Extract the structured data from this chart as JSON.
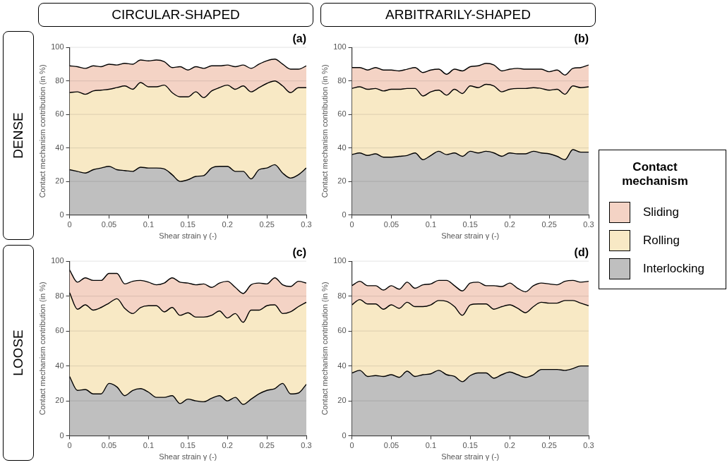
{
  "chart_data": [
    {
      "type": "area",
      "stacked": true,
      "title": "(a)",
      "xlabel": "Shear strain γ (-)",
      "ylabel": "Contact mechanism contribution (in %)",
      "annotations": [
        "CIRCULAR-SHAPED",
        "DENSE"
      ],
      "x": [
        0,
        0.01,
        0.02,
        0.03,
        0.04,
        0.05,
        0.06,
        0.07,
        0.08,
        0.09,
        0.1,
        0.11,
        0.12,
        0.13,
        0.14,
        0.15,
        0.16,
        0.17,
        0.18,
        0.19,
        0.2,
        0.21,
        0.22,
        0.23,
        0.24,
        0.25,
        0.26,
        0.27,
        0.28,
        0.29,
        0.3
      ],
      "xlim": [
        0,
        0.3
      ],
      "xticks": [
        0,
        0.05,
        0.1,
        0.15,
        0.2,
        0.25,
        0.3
      ],
      "ylim": [
        0,
        100
      ],
      "yticks": [
        0,
        20,
        40,
        60,
        80,
        100
      ],
      "grid": "y",
      "legend": false,
      "series": [
        {
          "color": "#bfbfbf",
          "values": [
            27,
            26,
            25,
            27,
            28,
            29,
            27,
            26.5,
            26,
            28.5,
            28,
            28,
            27.5,
            24,
            20,
            21,
            23,
            23.5,
            28,
            29,
            29,
            26,
            26,
            21.5,
            27,
            28,
            30,
            25,
            22,
            24,
            28
          ]
        },
        {
          "color": "#f8e9c5",
          "values": [
            46,
            47.5,
            47,
            47,
            46.5,
            46,
            49,
            50.5,
            49,
            50.5,
            48.5,
            48.5,
            50,
            49,
            50.5,
            49.5,
            50.5,
            46.5,
            46,
            47,
            48.5,
            49,
            51,
            52,
            49,
            50.5,
            50,
            52,
            51,
            52,
            48
          ]
        },
        {
          "color": "#f4d3c5",
          "values": [
            16,
            15,
            15.5,
            15,
            14,
            15,
            13.5,
            13.5,
            15,
            13.5,
            15.5,
            16,
            14,
            15,
            18,
            16,
            15,
            17.5,
            15,
            13,
            12,
            13.5,
            12.5,
            14,
            14,
            13.5,
            13,
            13,
            14,
            11,
            13
          ]
        }
      ]
    },
    {
      "type": "area",
      "stacked": true,
      "title": "(b)",
      "xlabel": "Shear strain γ (-)",
      "ylabel": "Contact mechanism contribution (in %)",
      "annotations": [
        "ARBITRARILY-SHAPED"
      ],
      "legend_title": "Contact mechanism",
      "x": [
        0,
        0.01,
        0.02,
        0.03,
        0.04,
        0.05,
        0.06,
        0.07,
        0.08,
        0.09,
        0.1,
        0.11,
        0.12,
        0.13,
        0.14,
        0.15,
        0.16,
        0.17,
        0.18,
        0.19,
        0.2,
        0.21,
        0.22,
        0.23,
        0.24,
        0.25,
        0.26,
        0.27,
        0.28,
        0.29,
        0.3
      ],
      "xlim": [
        0,
        0.3
      ],
      "xticks": [
        0,
        0.05,
        0.1,
        0.15,
        0.2,
        0.25,
        0.3
      ],
      "ylim": [
        0,
        100
      ],
      "yticks": [
        0,
        20,
        40,
        60,
        80,
        100
      ],
      "grid": "y",
      "legend": "right",
      "series": [
        {
          "name": "Interlocking",
          "color": "#bfbfbf",
          "values": [
            36,
            37,
            35.5,
            36.5,
            34.5,
            34.5,
            35,
            35.5,
            37,
            33,
            35.5,
            38,
            36,
            37,
            35,
            38,
            37,
            38,
            37,
            35,
            37,
            36.5,
            36.5,
            38,
            37,
            36.5,
            35,
            33,
            39,
            37.5,
            37.5
          ]
        },
        {
          "name": "Rolling",
          "color": "#f8e9c5",
          "values": [
            39.5,
            39.5,
            39.5,
            39,
            39.5,
            40.5,
            40,
            40,
            38.5,
            38,
            38,
            36.5,
            35.5,
            38,
            37.5,
            39,
            39,
            40,
            40,
            38.5,
            38,
            39,
            39,
            38,
            38.5,
            38,
            40,
            39,
            38,
            38.5,
            39
          ]
        },
        {
          "name": "Sliding",
          "color": "#f4d3c5",
          "values": [
            12.5,
            11.5,
            11.5,
            12.5,
            12.5,
            11.5,
            11,
            11.5,
            12.5,
            14,
            13,
            12.5,
            12.5,
            12,
            13.5,
            11.5,
            13,
            12.5,
            12.5,
            12.5,
            12,
            12,
            11.5,
            11,
            11.5,
            11,
            11.5,
            11.5,
            10.5,
            12,
            13
          ]
        }
      ]
    },
    {
      "type": "area",
      "stacked": true,
      "title": "(c)",
      "xlabel": "Shear strain γ (-)",
      "ylabel": "Contact mechanism contribution (in %)",
      "annotations": [
        "LOOSE"
      ],
      "x": [
        0,
        0.01,
        0.02,
        0.03,
        0.04,
        0.05,
        0.06,
        0.07,
        0.08,
        0.09,
        0.1,
        0.11,
        0.12,
        0.13,
        0.14,
        0.15,
        0.16,
        0.17,
        0.18,
        0.19,
        0.2,
        0.21,
        0.22,
        0.23,
        0.24,
        0.25,
        0.26,
        0.27,
        0.28,
        0.29,
        0.3
      ],
      "xlim": [
        0,
        0.3
      ],
      "xticks": [
        0,
        0.05,
        0.1,
        0.15,
        0.2,
        0.25,
        0.3
      ],
      "ylim": [
        0,
        100
      ],
      "yticks": [
        0,
        20,
        40,
        60,
        80,
        100
      ],
      "grid": "y",
      "legend": false,
      "series": [
        {
          "color": "#bfbfbf",
          "values": [
            34,
            26,
            26.5,
            24,
            24,
            30,
            28,
            23,
            26,
            27,
            25,
            22,
            22,
            23,
            18.5,
            21,
            20,
            19.5,
            21.5,
            23,
            20,
            22,
            18,
            21,
            24,
            26,
            27,
            30,
            24,
            24.5,
            29.5
          ]
        },
        {
          "color": "#f8e9c5",
          "values": [
            48,
            46.5,
            48.5,
            48,
            49.5,
            46,
            50.5,
            50,
            44,
            46.5,
            49.5,
            52.5,
            49,
            50.5,
            50.5,
            49.5,
            48,
            48.5,
            47.5,
            48.5,
            47.5,
            48,
            47,
            51,
            48,
            48.5,
            48,
            40,
            47,
            49.5,
            47
          ]
        },
        {
          "color": "#f4d3c5",
          "values": [
            13,
            15.5,
            15.5,
            17,
            15.5,
            17,
            14.5,
            14,
            18.5,
            15.5,
            13.5,
            12,
            16.5,
            17,
            19,
            17,
            18.5,
            19,
            16,
            16,
            21,
            15,
            16.5,
            14.5,
            15.5,
            12.5,
            15.5,
            16.5,
            14.5,
            14.5,
            11
          ]
        }
      ]
    },
    {
      "type": "area",
      "stacked": true,
      "title": "(d)",
      "xlabel": "Shear strain γ (-)",
      "ylabel": "Contact mechanism contribution (in %)",
      "x": [
        0,
        0.01,
        0.02,
        0.03,
        0.04,
        0.05,
        0.06,
        0.07,
        0.08,
        0.09,
        0.1,
        0.11,
        0.12,
        0.13,
        0.14,
        0.15,
        0.16,
        0.17,
        0.18,
        0.19,
        0.2,
        0.21,
        0.22,
        0.23,
        0.24,
        0.25,
        0.26,
        0.27,
        0.28,
        0.29,
        0.3
      ],
      "xlim": [
        0,
        0.3
      ],
      "xticks": [
        0,
        0.05,
        0.1,
        0.15,
        0.2,
        0.25,
        0.3
      ],
      "ylim": [
        0,
        100
      ],
      "yticks": [
        0,
        20,
        40,
        60,
        80,
        100
      ],
      "grid": "y",
      "legend": false,
      "series": [
        {
          "color": "#bfbfbf",
          "values": [
            36,
            37.5,
            34,
            34.5,
            34,
            35,
            33.5,
            37,
            34,
            35,
            35.5,
            37.5,
            35,
            34,
            31,
            34.5,
            36,
            36,
            33,
            35,
            36.5,
            35,
            33.5,
            35,
            38,
            38,
            38,
            37.5,
            38.5,
            40,
            40
          ]
        },
        {
          "color": "#f8e9c5",
          "values": [
            39,
            40.5,
            41.5,
            41,
            38.5,
            40,
            39.5,
            39.5,
            40,
            39,
            39.5,
            40,
            42,
            40,
            38,
            40.5,
            39.5,
            39.5,
            39.5,
            39,
            38.5,
            38,
            37,
            39,
            38.5,
            38,
            38,
            40,
            39,
            36,
            34.5
          ]
        },
        {
          "color": "#f4d3c5",
          "values": [
            11,
            10.5,
            10.5,
            10.5,
            11,
            11,
            11,
            11.5,
            10.5,
            12.5,
            12,
            11.5,
            12,
            12,
            14,
            12.5,
            12.5,
            10.5,
            13.5,
            11.5,
            12.5,
            11.5,
            12,
            12,
            11,
            11,
            10.5,
            11,
            11.5,
            12,
            14
          ]
        }
      ]
    }
  ]
}
